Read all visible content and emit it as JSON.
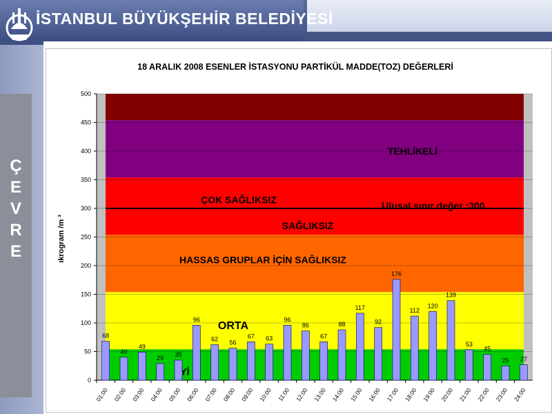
{
  "header": {
    "title": "İSTANBUL BÜYÜKŞEHİR BELEDİYESİ"
  },
  "sidebar": {
    "letters": [
      "Ç",
      "E",
      "V",
      "R",
      "E"
    ]
  },
  "chart_data": {
    "type": "bar",
    "title": "18 ARALIK 2008 ESENLER İSTASYONU PARTİKÜL MADDE(TOZ) DEĞERLERİ",
    "ylabel": "ıkrogram /m ³",
    "xlabel": "",
    "ylim": [
      0,
      500
    ],
    "yticks": [
      0,
      50,
      100,
      150,
      200,
      250,
      300,
      350,
      400,
      450,
      500
    ],
    "categories": [
      "01:00",
      "02:00",
      "03:00",
      "04:00",
      "05:00",
      "06:00",
      "07:00",
      "08:00",
      "09:00",
      "10:00",
      "11:00",
      "12:00",
      "13:00",
      "14:00",
      "15:00",
      "16:00",
      "17:00",
      "18:00",
      "19:00",
      "20:00",
      "21:00",
      "22:00",
      "23:00",
      "24:00"
    ],
    "category_labels": [
      "01:00",
      "02:00",
      "03:00",
      "04:00",
      "05:00",
      "06:00",
      "07:00",
      "08:00",
      "09:00",
      "10:00",
      "11:00",
      "12:00",
      "13:00",
      "14:00",
      "15:00",
      "16:00",
      "17:00",
      "18:00",
      "19:00",
      "20:00",
      "21:00",
      "22:00",
      "23:00",
      "24:00"
    ],
    "values": [
      68,
      40,
      49,
      29,
      35,
      96,
      62,
      56,
      67,
      63,
      96,
      86,
      67,
      88,
      117,
      92,
      176,
      112,
      120,
      139,
      53,
      45,
      25,
      27
    ],
    "bar_color": "#9999ff",
    "bands": [
      {
        "from": 0,
        "to": 54,
        "color": "#00cc00",
        "label": "İYİ"
      },
      {
        "from": 54,
        "to": 154,
        "color": "#ffff00",
        "label": "ORTA"
      },
      {
        "from": 154,
        "to": 254,
        "color": "#ff6600",
        "label": "HASSAS GRUPLAR İÇİN SAĞLIKSIZ"
      },
      {
        "from": 254,
        "to": 354,
        "color": "#ff0000",
        "label": "SAĞLIKSIZ"
      },
      {
        "from": 354,
        "to": 454,
        "color": "#800080",
        "label": "ÇOK SAĞLIKSIZ"
      },
      {
        "from": 454,
        "to": 500,
        "color": "#800000",
        "label": "TEHLİKELİ"
      }
    ],
    "band_text_positions": [
      {
        "label": "TEHLİKELİ",
        "value": 400
      },
      {
        "label": "ÇOK SAĞLIKSIZ",
        "value": 315
      },
      {
        "label": "SAĞLIKSIZ",
        "value": 270
      },
      {
        "label": "HASSAS GRUPLAR İÇİN SAĞLIKSIZ",
        "value": 210
      },
      {
        "label": "ORTA",
        "value": 95
      },
      {
        "label": "İYİ",
        "value": 15
      }
    ],
    "threshold": {
      "value": 300,
      "label": "Ulusal  sınır değer :300"
    },
    "grid": true
  }
}
